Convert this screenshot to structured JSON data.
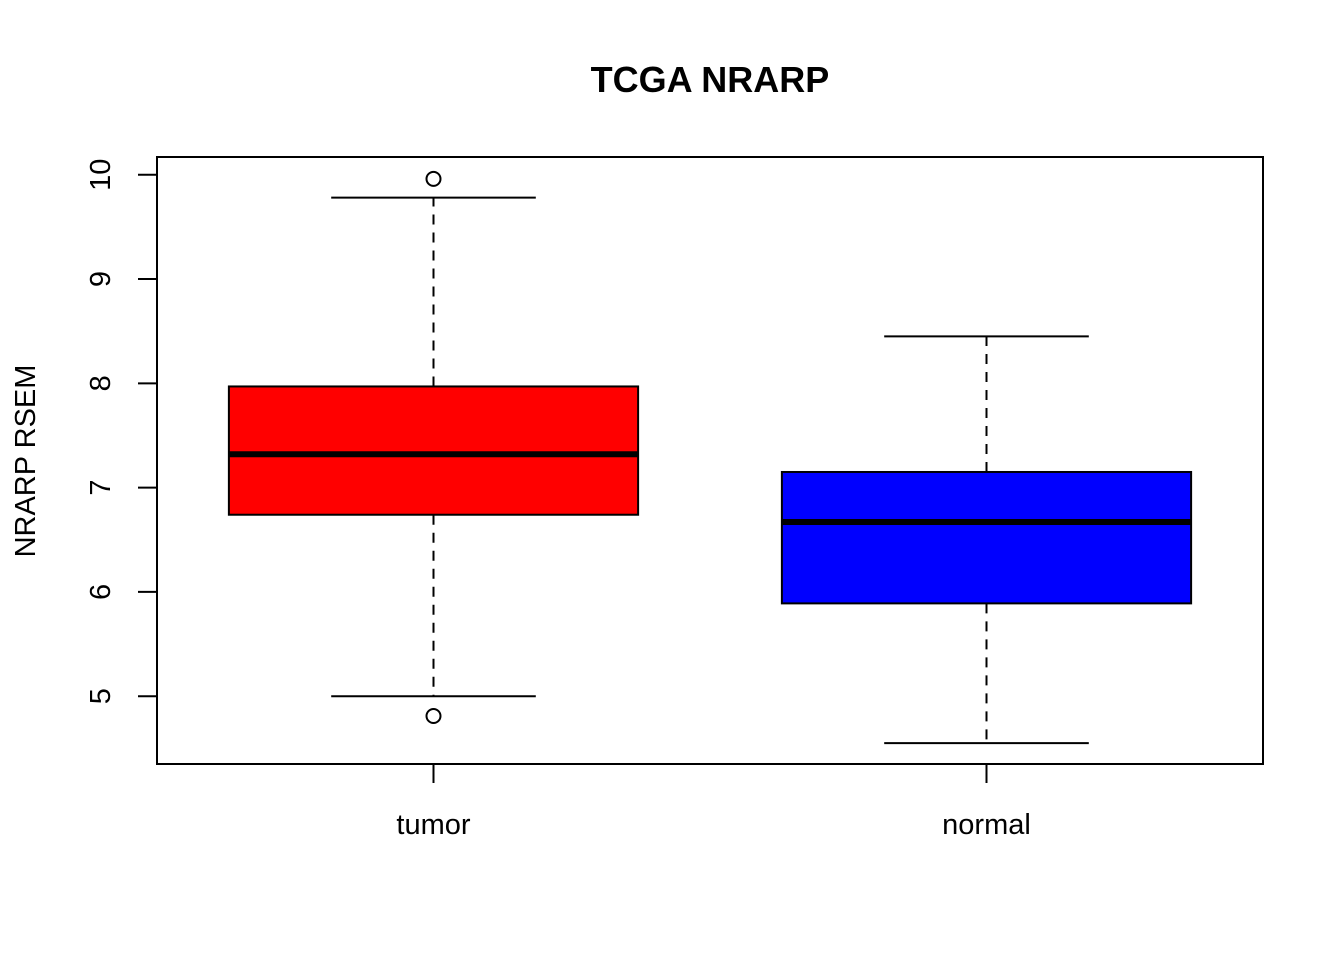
{
  "chart_data": {
    "type": "boxplot",
    "title": "TCGA NRARP",
    "xlabel": "",
    "ylabel": "NRARP RSEM",
    "ylim": [
      4.35,
      10.17
    ],
    "yticks": [
      "5",
      "6",
      "7",
      "8",
      "9",
      "10"
    ],
    "grid": false,
    "legend": "none",
    "categories": [
      "tumor",
      "normal"
    ],
    "series": [
      {
        "category": "tumor",
        "color": "#ff0000",
        "whisker_low": 5.0,
        "q1": 6.74,
        "median": 7.32,
        "q3": 7.97,
        "whisker_high": 9.78,
        "outliers": [
          9.96,
          4.81
        ]
      },
      {
        "category": "normal",
        "color": "#0000ff",
        "whisker_low": 4.55,
        "q1": 5.89,
        "median": 6.67,
        "q3": 7.15,
        "whisker_high": 8.45,
        "outliers": []
      }
    ]
  }
}
